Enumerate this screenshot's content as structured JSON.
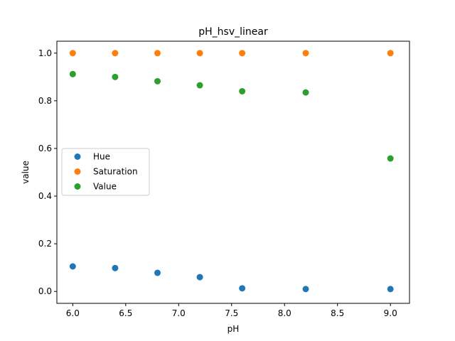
{
  "chart_data": {
    "type": "scatter",
    "title": "pH_hsv_linear",
    "xlabel": "pH",
    "ylabel": "value",
    "xlim": [
      5.85,
      9.18
    ],
    "ylim": [
      -0.05,
      1.05
    ],
    "xticks": [
      6.0,
      6.5,
      7.0,
      7.5,
      8.0,
      8.5,
      9.0
    ],
    "xtick_labels": [
      "6.0",
      "6.5",
      "7.0",
      "7.5",
      "8.0",
      "8.5",
      "9.0"
    ],
    "yticks": [
      0.0,
      0.2,
      0.4,
      0.6,
      0.8,
      1.0
    ],
    "ytick_labels": [
      "0.0",
      "0.2",
      "0.4",
      "0.6",
      "0.8",
      "1.0"
    ],
    "grid": false,
    "legend_position": "center-left",
    "x": [
      6.0,
      6.4,
      6.8,
      7.2,
      7.6,
      8.2,
      9.0
    ],
    "series": [
      {
        "name": "Hue",
        "color": "#1f77b4",
        "values": [
          0.105,
          0.098,
          0.078,
          0.06,
          0.013,
          0.01,
          0.01
        ]
      },
      {
        "name": "Saturation",
        "color": "#ff7f0e",
        "values": [
          1.0,
          1.0,
          1.0,
          1.0,
          1.0,
          1.0,
          1.0
        ]
      },
      {
        "name": "Value",
        "color": "#2ca02c",
        "values": [
          0.912,
          0.9,
          0.882,
          0.865,
          0.84,
          0.835,
          0.558
        ]
      }
    ]
  }
}
